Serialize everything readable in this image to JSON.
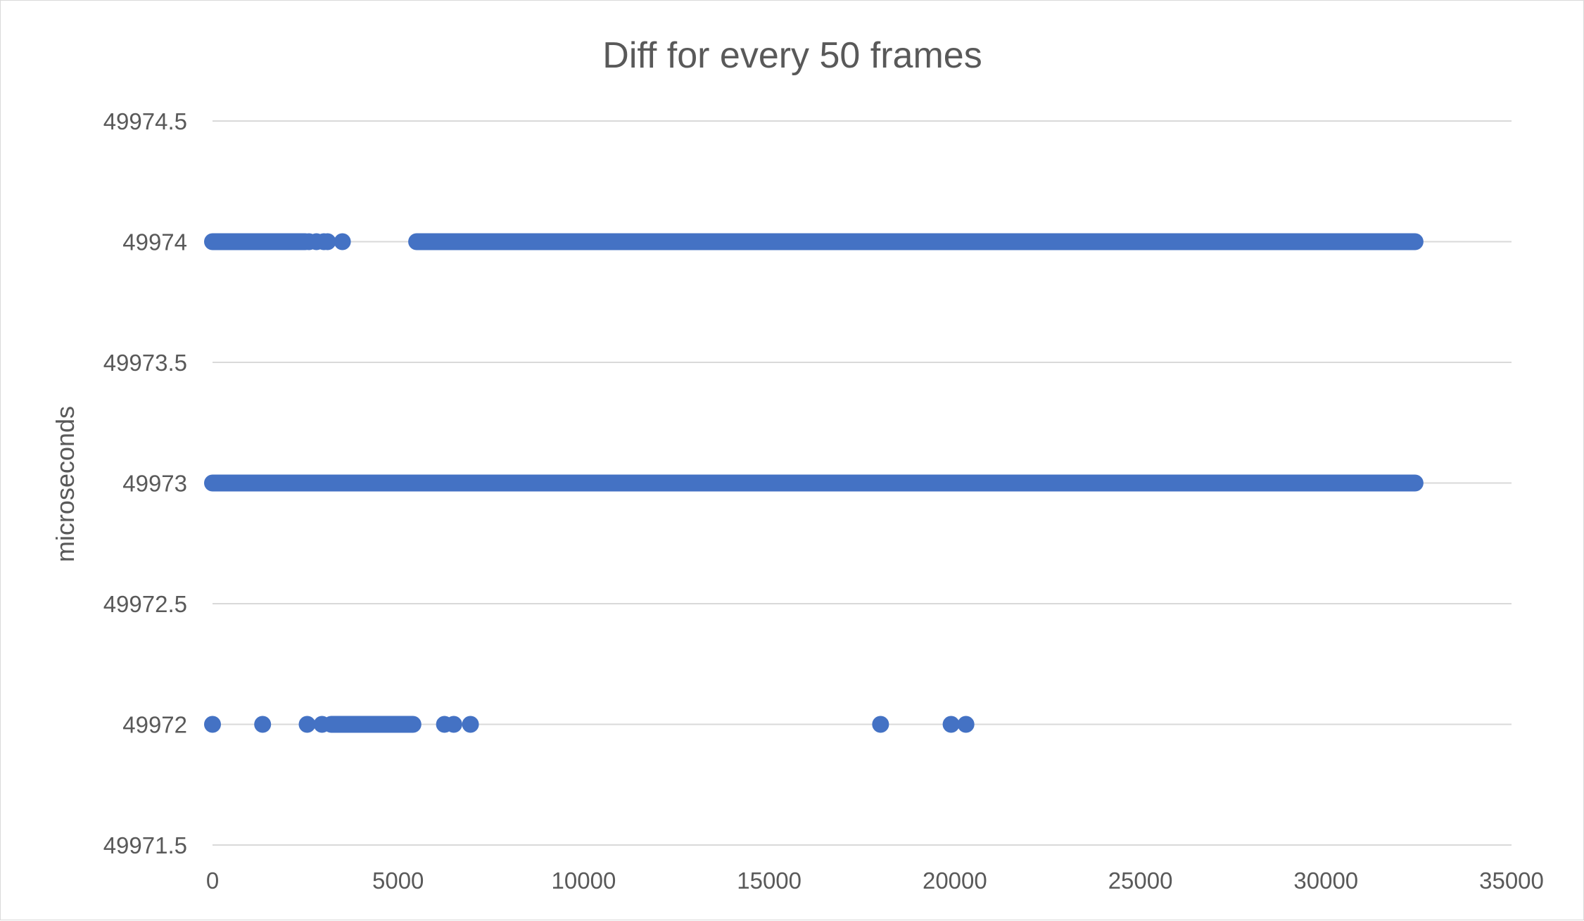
{
  "chart_data": {
    "type": "scatter",
    "title": "Diff for every 50 frames",
    "xlabel": "",
    "ylabel": "microseconds",
    "xlim": [
      0,
      35000
    ],
    "ylim": [
      49971.5,
      49974.5
    ],
    "x_ticks": [
      0,
      5000,
      10000,
      15000,
      20000,
      25000,
      30000,
      35000
    ],
    "y_ticks": [
      49974.5,
      49974,
      49973.5,
      49973,
      49972.5,
      49972,
      49971.5
    ],
    "grid": "horizontal",
    "legend": "none",
    "marker_color": "#4472c4",
    "gridline_color": "#d9d9d9",
    "series": [
      {
        "dense_runs": [
          {
            "y": 49974,
            "x_start": 0,
            "x_end": 2500
          },
          {
            "y": 49974,
            "x_start": 5500,
            "x_end": 32400
          },
          {
            "y": 49973,
            "x_start": 0,
            "x_end": 32400
          },
          {
            "y": 49972,
            "x_start": 3200,
            "x_end": 5400
          }
        ],
        "points": [
          {
            "x": 2600,
            "y": 49974
          },
          {
            "x": 2800,
            "y": 49974
          },
          {
            "x": 3000,
            "y": 49974
          },
          {
            "x": 3100,
            "y": 49974
          },
          {
            "x": 3500,
            "y": 49974
          },
          {
            "x": 0,
            "y": 49972
          },
          {
            "x": 1350,
            "y": 49972
          },
          {
            "x": 2550,
            "y": 49972
          },
          {
            "x": 2950,
            "y": 49972
          },
          {
            "x": 6250,
            "y": 49972
          },
          {
            "x": 6500,
            "y": 49972
          },
          {
            "x": 6950,
            "y": 49972
          },
          {
            "x": 18000,
            "y": 49972
          },
          {
            "x": 19900,
            "y": 49972
          },
          {
            "x": 20300,
            "y": 49972
          }
        ]
      }
    ]
  }
}
